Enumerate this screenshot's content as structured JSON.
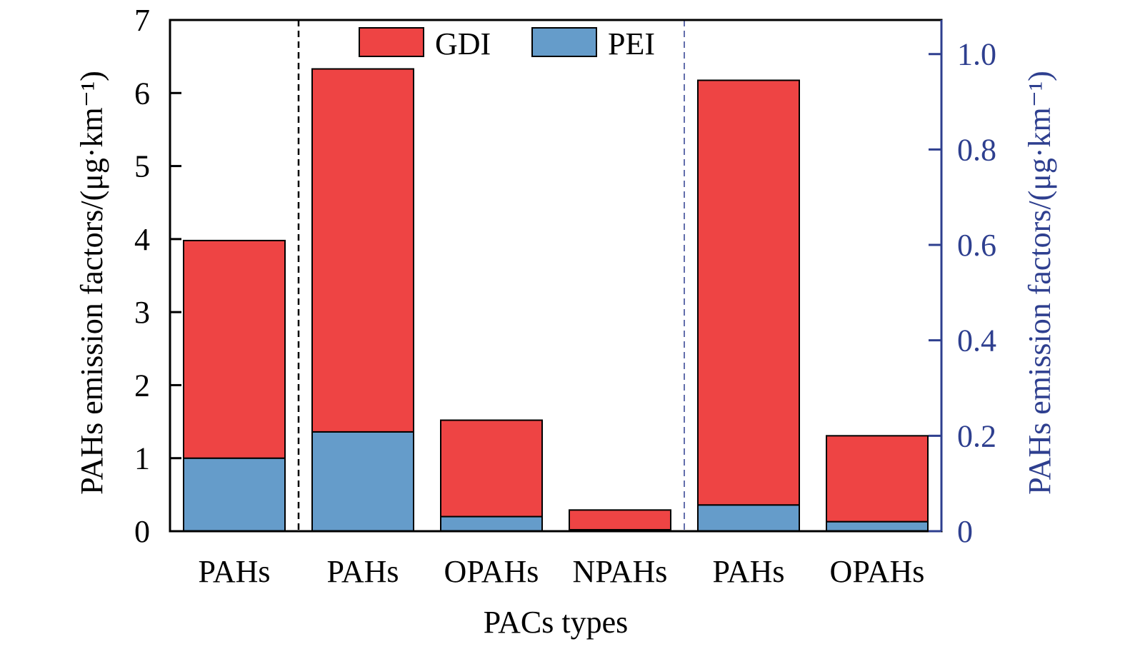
{
  "chart_data": {
    "type": "bar",
    "stacked": true,
    "categories": [
      "PAHs",
      "PAHs",
      "OPAHs",
      "NPAHs",
      "PAHs",
      "OPAHs"
    ],
    "xlabel": "PACs types",
    "ylabel_left": "PAHs emission factors/(μg·km⁻¹)",
    "ylabel_right": "PAHs emission factors/(μg·km⁻¹)",
    "ylim_left": [
      0,
      7
    ],
    "yticks_left": [
      "0",
      "1",
      "2",
      "3",
      "4",
      "5",
      "6",
      "7"
    ],
    "ylim_right": [
      0,
      1.0714
    ],
    "yticks_right": [
      "0",
      "0.2",
      "0.4",
      "0.6",
      "0.8",
      "1.0"
    ],
    "right_axis_starts_at_category": 4,
    "series": [
      {
        "name": "PEI",
        "color": "#659cca",
        "totals": [
          1.0,
          1.36,
          0.2,
          0.02,
          0.055,
          0.02
        ]
      },
      {
        "name": "GDI",
        "color": "#ee4444",
        "totals": [
          3.98,
          6.33,
          1.52,
          0.29,
          0.945,
          0.2
        ]
      }
    ],
    "legend": {
      "position": "top-center",
      "entries": [
        "GDI",
        "PEI"
      ]
    },
    "right_axis_color": "#2e3f8f",
    "grid": false
  }
}
